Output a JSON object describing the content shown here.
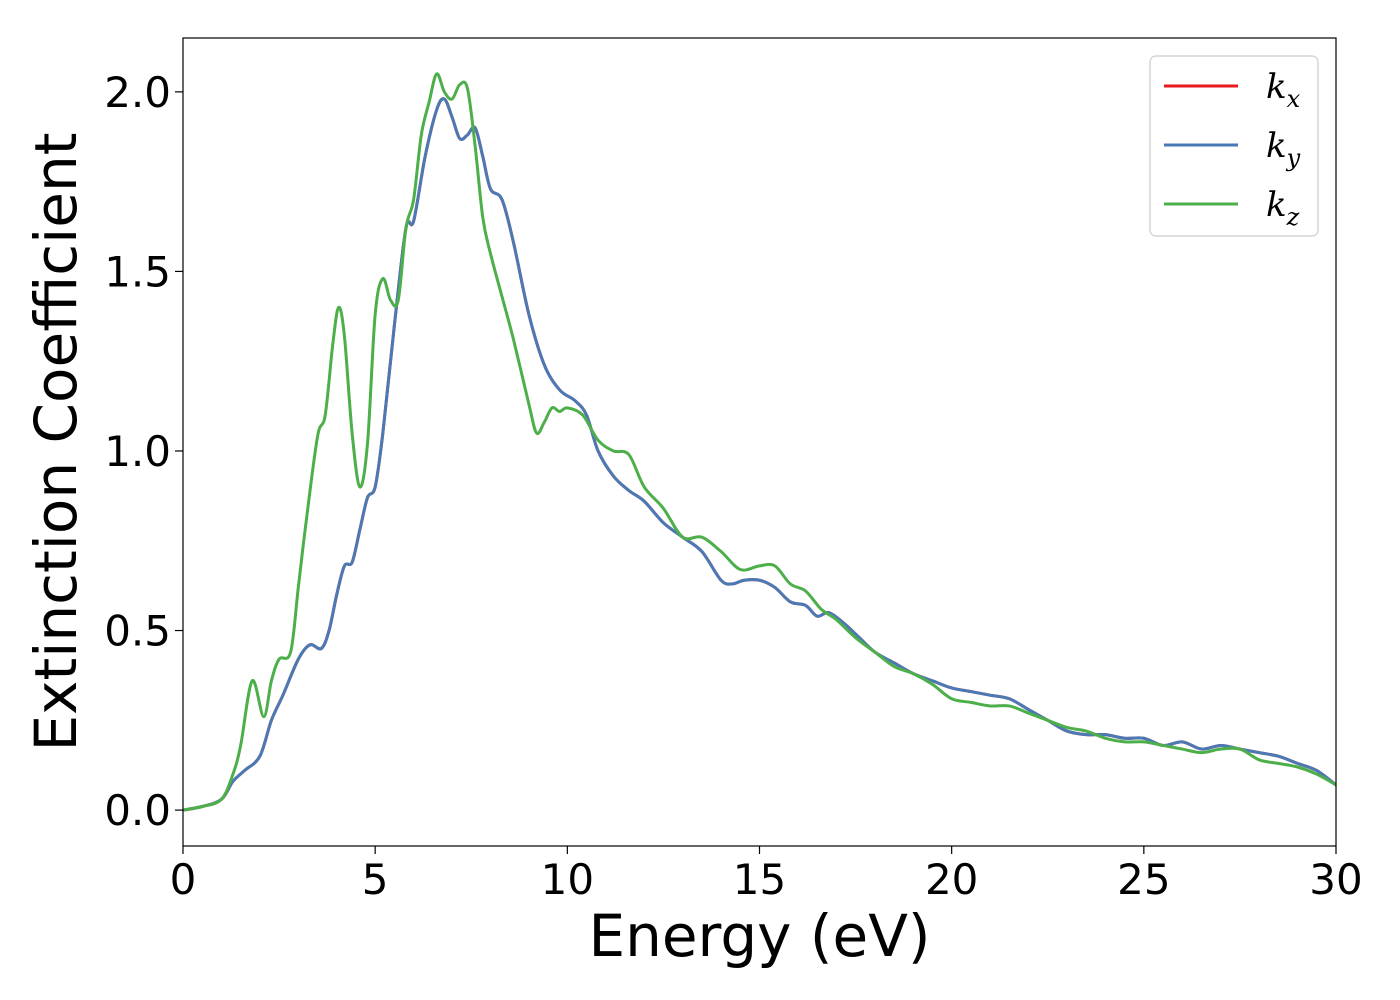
{
  "chart_data": {
    "type": "line",
    "title": "",
    "xlabel": "Energy (eV)",
    "ylabel": "Extinction Coefficient",
    "xlim": [
      0,
      30
    ],
    "ylim": [
      -0.1,
      2.15
    ],
    "xticks": [
      0,
      5,
      10,
      15,
      20,
      25,
      30
    ],
    "xtick_labels": [
      "0",
      "5",
      "10",
      "15",
      "20",
      "25",
      "30"
    ],
    "yticks": [
      0.0,
      0.5,
      1.0,
      1.5,
      2.0
    ],
    "ytick_labels": [
      "0.0",
      "0.5",
      "1.0",
      "1.5",
      "2.0"
    ],
    "grid": false,
    "legend_position": "top-right",
    "series": [
      {
        "name": "k_x",
        "legend_base": "k",
        "legend_sub": "x",
        "color": "#e41a1c",
        "x": [
          0,
          0.5,
          1.0,
          1.3,
          1.6,
          2.0,
          2.3,
          2.6,
          3.0,
          3.3,
          3.6,
          3.8,
          4.0,
          4.2,
          4.4,
          4.6,
          4.8,
          5.0,
          5.2,
          5.5,
          5.8,
          6.0,
          6.3,
          6.6,
          6.8,
          7.0,
          7.2,
          7.4,
          7.6,
          7.8,
          8.0,
          8.3,
          8.6,
          9.0,
          9.4,
          9.8,
          10.2,
          10.5,
          10.8,
          11.2,
          11.6,
          12.0,
          12.5,
          13.0,
          13.5,
          14.0,
          14.3,
          14.6,
          15.0,
          15.4,
          15.8,
          16.2,
          16.5,
          16.8,
          17.2,
          17.6,
          18.0,
          18.5,
          19.0,
          19.5,
          20.0,
          20.5,
          21.0,
          21.5,
          22.0,
          22.5,
          23.0,
          23.5,
          24.0,
          24.5,
          25.0,
          25.5,
          26.0,
          26.5,
          27.0,
          27.5,
          28.0,
          28.5,
          29.0,
          29.5,
          30.0
        ],
        "values": [
          0.0,
          0.01,
          0.03,
          0.08,
          0.11,
          0.15,
          0.25,
          0.32,
          0.42,
          0.46,
          0.45,
          0.5,
          0.6,
          0.68,
          0.69,
          0.78,
          0.87,
          0.9,
          1.05,
          1.35,
          1.62,
          1.64,
          1.82,
          1.95,
          1.98,
          1.93,
          1.87,
          1.88,
          1.9,
          1.82,
          1.73,
          1.7,
          1.58,
          1.38,
          1.24,
          1.17,
          1.14,
          1.1,
          1.0,
          0.93,
          0.89,
          0.86,
          0.8,
          0.76,
          0.72,
          0.64,
          0.63,
          0.64,
          0.64,
          0.62,
          0.58,
          0.57,
          0.54,
          0.55,
          0.52,
          0.48,
          0.44,
          0.41,
          0.38,
          0.36,
          0.34,
          0.33,
          0.32,
          0.31,
          0.28,
          0.25,
          0.22,
          0.21,
          0.21,
          0.2,
          0.2,
          0.18,
          0.19,
          0.17,
          0.18,
          0.17,
          0.16,
          0.15,
          0.13,
          0.11,
          0.07
        ]
      },
      {
        "name": "k_y",
        "legend_base": "k",
        "legend_sub": "y",
        "color": "#4a7ab5",
        "x": [
          0,
          0.5,
          1.0,
          1.3,
          1.6,
          2.0,
          2.3,
          2.6,
          3.0,
          3.3,
          3.6,
          3.8,
          4.0,
          4.2,
          4.4,
          4.6,
          4.8,
          5.0,
          5.2,
          5.5,
          5.8,
          6.0,
          6.3,
          6.6,
          6.8,
          7.0,
          7.2,
          7.4,
          7.6,
          7.8,
          8.0,
          8.3,
          8.6,
          9.0,
          9.4,
          9.8,
          10.2,
          10.5,
          10.8,
          11.2,
          11.6,
          12.0,
          12.5,
          13.0,
          13.5,
          14.0,
          14.3,
          14.6,
          15.0,
          15.4,
          15.8,
          16.2,
          16.5,
          16.8,
          17.2,
          17.6,
          18.0,
          18.5,
          19.0,
          19.5,
          20.0,
          20.5,
          21.0,
          21.5,
          22.0,
          22.5,
          23.0,
          23.5,
          24.0,
          24.5,
          25.0,
          25.5,
          26.0,
          26.5,
          27.0,
          27.5,
          28.0,
          28.5,
          29.0,
          29.5,
          30.0
        ],
        "values": [
          0.0,
          0.01,
          0.03,
          0.08,
          0.11,
          0.15,
          0.25,
          0.32,
          0.42,
          0.46,
          0.45,
          0.5,
          0.6,
          0.68,
          0.69,
          0.78,
          0.87,
          0.9,
          1.05,
          1.35,
          1.62,
          1.64,
          1.82,
          1.95,
          1.98,
          1.93,
          1.87,
          1.88,
          1.9,
          1.82,
          1.73,
          1.7,
          1.58,
          1.38,
          1.24,
          1.17,
          1.14,
          1.1,
          1.0,
          0.93,
          0.89,
          0.86,
          0.8,
          0.76,
          0.72,
          0.64,
          0.63,
          0.64,
          0.64,
          0.62,
          0.58,
          0.57,
          0.54,
          0.55,
          0.52,
          0.48,
          0.44,
          0.41,
          0.38,
          0.36,
          0.34,
          0.33,
          0.32,
          0.31,
          0.28,
          0.25,
          0.22,
          0.21,
          0.21,
          0.2,
          0.2,
          0.18,
          0.19,
          0.17,
          0.18,
          0.17,
          0.16,
          0.15,
          0.13,
          0.11,
          0.07
        ]
      },
      {
        "name": "k_z",
        "legend_base": "k",
        "legend_sub": "z",
        "color": "#4daf4a",
        "x": [
          0,
          0.5,
          1.0,
          1.3,
          1.5,
          1.8,
          2.1,
          2.3,
          2.5,
          2.8,
          3.0,
          3.2,
          3.5,
          3.7,
          3.9,
          4.05,
          4.2,
          4.4,
          4.6,
          4.8,
          5.0,
          5.2,
          5.4,
          5.6,
          5.8,
          6.0,
          6.2,
          6.4,
          6.6,
          6.8,
          7.0,
          7.2,
          7.4,
          7.6,
          7.8,
          8.0,
          8.3,
          8.6,
          9.0,
          9.2,
          9.4,
          9.6,
          9.8,
          10.0,
          10.4,
          10.8,
          11.2,
          11.6,
          12.0,
          12.5,
          13.0,
          13.5,
          14.0,
          14.5,
          15.0,
          15.4,
          15.8,
          16.2,
          16.6,
          17.0,
          17.5,
          18.0,
          18.5,
          19.0,
          19.5,
          20.0,
          20.5,
          21.0,
          21.5,
          22.0,
          22.5,
          23.0,
          23.5,
          24.0,
          24.5,
          25.0,
          25.5,
          26.0,
          26.5,
          27.0,
          27.5,
          28.0,
          28.5,
          29.0,
          29.5,
          30.0
        ],
        "values": [
          0.0,
          0.01,
          0.03,
          0.1,
          0.18,
          0.36,
          0.26,
          0.36,
          0.42,
          0.44,
          0.62,
          0.8,
          1.04,
          1.1,
          1.3,
          1.4,
          1.32,
          1.05,
          0.9,
          1.02,
          1.38,
          1.48,
          1.42,
          1.42,
          1.62,
          1.7,
          1.88,
          1.97,
          2.05,
          2.0,
          1.98,
          2.02,
          2.01,
          1.85,
          1.65,
          1.55,
          1.43,
          1.31,
          1.13,
          1.05,
          1.08,
          1.12,
          1.11,
          1.12,
          1.1,
          1.03,
          1.0,
          0.99,
          0.9,
          0.84,
          0.76,
          0.76,
          0.72,
          0.67,
          0.68,
          0.68,
          0.63,
          0.61,
          0.56,
          0.53,
          0.48,
          0.44,
          0.4,
          0.38,
          0.35,
          0.31,
          0.3,
          0.29,
          0.29,
          0.27,
          0.25,
          0.23,
          0.22,
          0.2,
          0.19,
          0.19,
          0.18,
          0.17,
          0.16,
          0.17,
          0.17,
          0.14,
          0.13,
          0.12,
          0.1,
          0.07
        ]
      }
    ]
  }
}
